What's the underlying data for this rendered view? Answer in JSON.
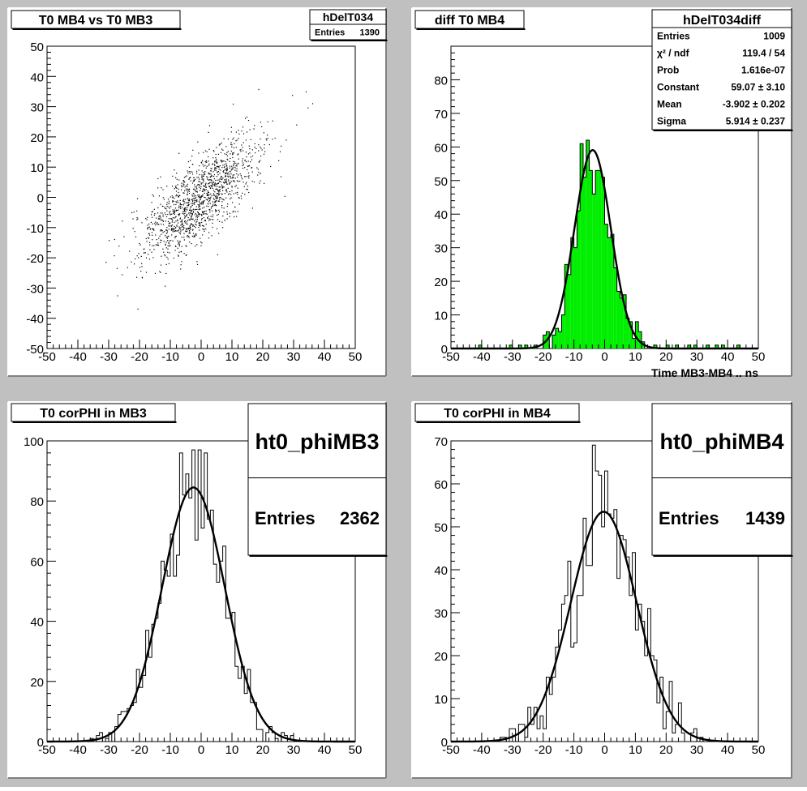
{
  "colors": {
    "canvas_bg": "#c0c0c0",
    "pad_bg": "#ffffff",
    "frame": "#000000",
    "hist_fill_green": "#00ee00",
    "fit_line": "#000000"
  },
  "chart_data": [
    {
      "id": "pad1",
      "type": "scatter",
      "title": "T0 MB4 vs T0 MB3",
      "xlabel": "",
      "ylabel": "",
      "xlim": [
        -50,
        50
      ],
      "ylim": [
        -50,
        50
      ],
      "x_ticks": [
        -50,
        -40,
        -30,
        -20,
        -10,
        0,
        10,
        20,
        30,
        40,
        50
      ],
      "y_ticks": [
        -50,
        -40,
        -30,
        -20,
        -10,
        0,
        10,
        20,
        30,
        40,
        50
      ],
      "stats": {
        "name": "hDelT034",
        "rows": [
          {
            "label": "Entries",
            "value": "1390"
          }
        ]
      },
      "scatter_model": {
        "n": 1390,
        "sigma_x": 10,
        "correlation": 0.75,
        "seed": 3
      }
    },
    {
      "id": "pad2",
      "type": "bar",
      "title": "diff T0 MB4",
      "xlabel": "Time MB3-MB4  ..  ns",
      "ylabel": "",
      "xlim": [
        -50,
        50
      ],
      "ylim": [
        0,
        90
      ],
      "x_ticks": [
        -50,
        -40,
        -30,
        -20,
        -10,
        0,
        10,
        20,
        30,
        40,
        50
      ],
      "y_ticks": [
        0,
        10,
        20,
        30,
        40,
        50,
        60,
        70,
        80
      ],
      "filled": true,
      "stats": {
        "name": "hDelT034diff",
        "rows": [
          {
            "label": "Entries",
            "value": "1009"
          },
          {
            "label": "χ² / ndf",
            "value": "119.4 / 54"
          },
          {
            "label": "Prob",
            "value": "1.616e-07"
          },
          {
            "label": "Constant",
            "value": "59.07 ± 3.10"
          },
          {
            "label": "Mean",
            "value": "-3.902 ± 0.202"
          },
          {
            "label": "Sigma",
            "value": "5.914 ± 0.237"
          }
        ]
      },
      "fit": {
        "constant": 59.07,
        "mean": -3.902,
        "sigma": 5.914
      },
      "histogram": {
        "bin_width": 1,
        "n": 1009,
        "seed": 11,
        "outlier_bins": [
          -41,
          -31,
          -28,
          -26,
          16,
          20,
          23,
          27,
          29,
          33,
          36,
          38,
          43
        ]
      }
    },
    {
      "id": "pad3",
      "type": "bar",
      "title": "T0 corPHI in MB3",
      "xlabel": "",
      "ylabel": "",
      "xlim": [
        -50,
        50
      ],
      "ylim": [
        0,
        100
      ],
      "x_ticks": [
        -50,
        -40,
        -30,
        -20,
        -10,
        0,
        10,
        20,
        30,
        40,
        50
      ],
      "y_ticks": [
        0,
        20,
        40,
        60,
        80,
        100
      ],
      "filled": false,
      "stats_big": {
        "name": "ht0_phiMB3",
        "label": "Entries",
        "value": "2362"
      },
      "fit": {
        "constant": 84.5,
        "mean": -2.5,
        "sigma": 10.2
      },
      "histogram": {
        "bin_width": 1,
        "n": 2362,
        "seed": 21,
        "outlier_bins": []
      }
    },
    {
      "id": "pad4",
      "type": "bar",
      "title": "T0 corPHI in MB4",
      "xlabel": "",
      "ylabel": "",
      "xlim": [
        -50,
        50
      ],
      "ylim": [
        0,
        70
      ],
      "x_ticks": [
        -50,
        -40,
        -30,
        -20,
        -10,
        0,
        10,
        20,
        30,
        40,
        50
      ],
      "y_ticks": [
        0,
        10,
        20,
        30,
        40,
        50,
        60,
        70
      ],
      "filled": false,
      "stats_big": {
        "name": "ht0_phiMB4",
        "label": "Entries",
        "value": "1439"
      },
      "fit": {
        "constant": 53.5,
        "mean": -0.3,
        "sigma": 10.7
      },
      "histogram": {
        "bin_width": 1,
        "n": 1439,
        "seed": 37,
        "outlier_bins": []
      }
    }
  ]
}
